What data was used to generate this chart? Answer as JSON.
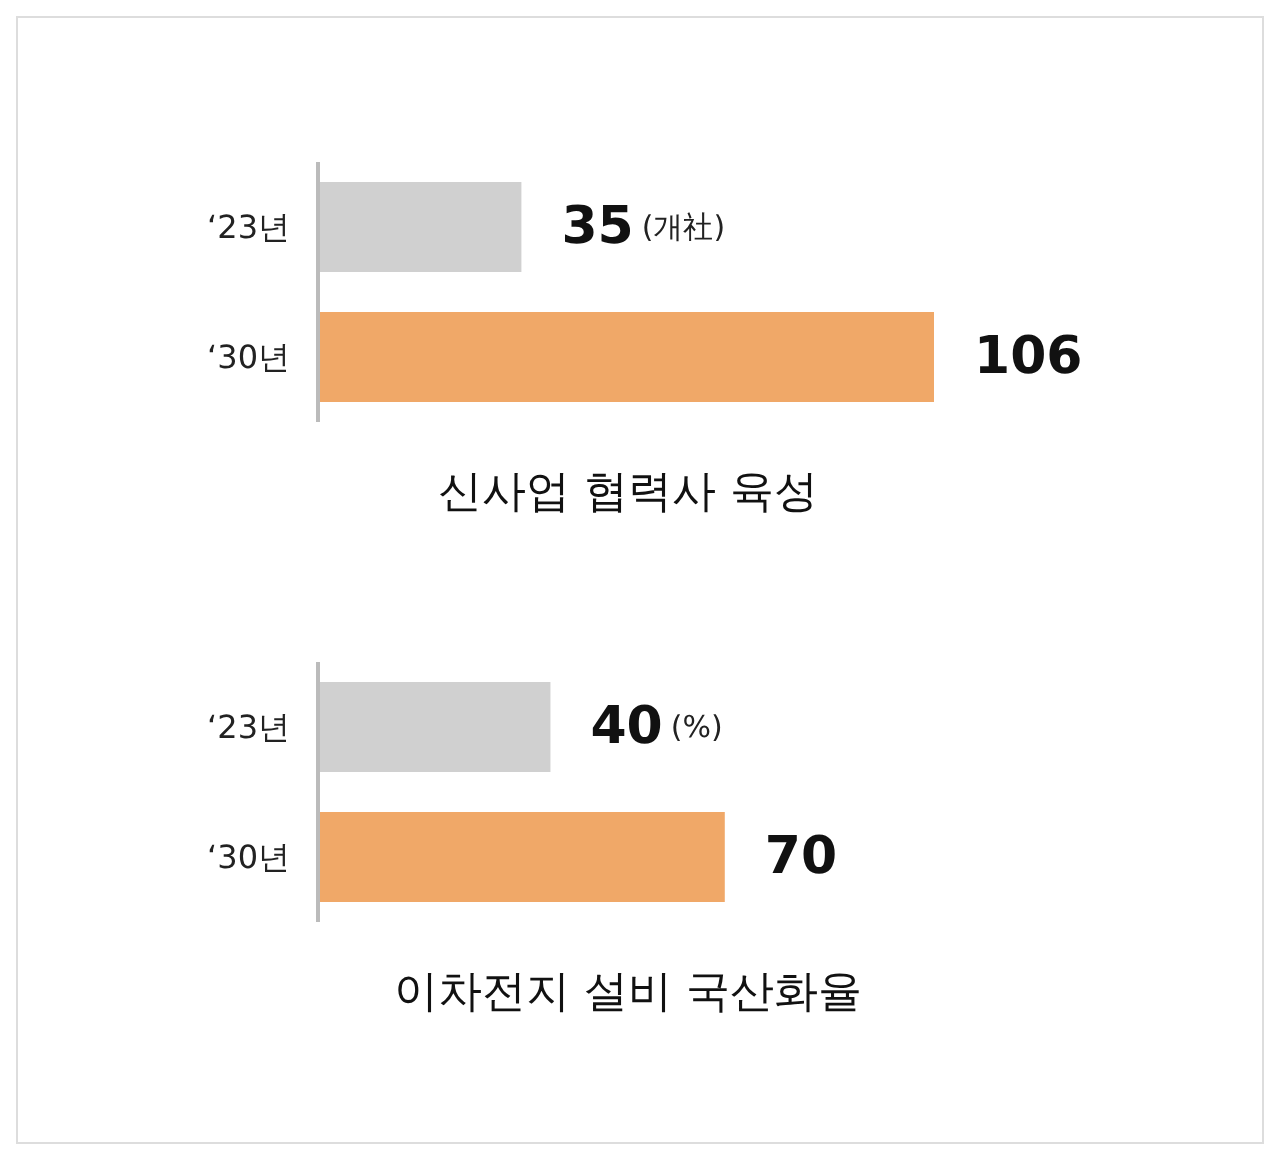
{
  "chart_data": [
    {
      "type": "bar",
      "orientation": "horizontal",
      "title": "신사업 협력사 육성",
      "categories": [
        "‘23년",
        "‘30년"
      ],
      "values": [
        35,
        106
      ],
      "colors": [
        "#d0d0d0",
        "#f0a868"
      ],
      "data_labels": true,
      "annotations": [
        "(개社)"
      ],
      "grid": false,
      "legend": false
    },
    {
      "type": "bar",
      "orientation": "horizontal",
      "title": "이차전지 설비 국산화율",
      "categories": [
        "‘23년",
        "‘30년"
      ],
      "values": [
        40,
        70
      ],
      "colors": [
        "#d0d0d0",
        "#f0a868"
      ],
      "data_labels": true,
      "annotations": [
        "(%)"
      ],
      "grid": false,
      "legend": false
    }
  ]
}
